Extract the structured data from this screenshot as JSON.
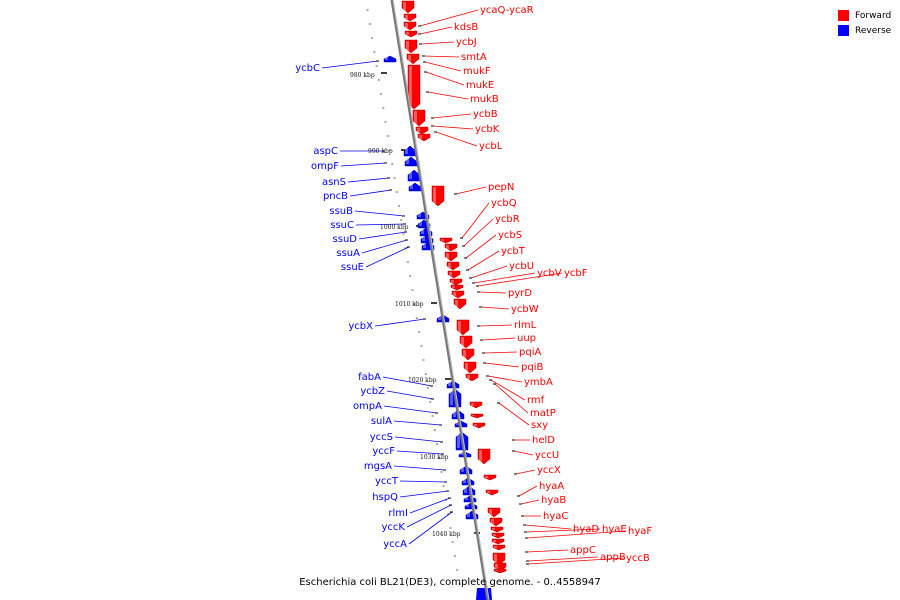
{
  "caption": "Escherichia coli BL21(DE3), complete genome. - 0..4558947",
  "legend": {
    "forward_label": "Forward",
    "forward_color": "#ff0000",
    "reverse_label": "Reverse",
    "reverse_color": "#0000ff"
  },
  "ticks": [
    "980 kbp",
    "990 kbp",
    "1000 kbp",
    "1010 kbp",
    "1020 kbp",
    "1030 kbp",
    "1040 kbp"
  ],
  "forward_genes": [
    "ycaQ-ycaR",
    "kdsB",
    "ycbJ",
    "smtA",
    "mukF",
    "mukE",
    "mukB",
    "ycbB",
    "ycbK",
    "ycbL",
    "pepN",
    "ycbQ",
    "ycbR",
    "ycbS",
    "ycbT",
    "ycbU",
    "ycbV",
    "ycbF",
    "pyrD",
    "ycbW",
    "rlmL",
    "uup",
    "pqiA",
    "pqiB",
    "ymbA",
    "rmf",
    "matP",
    "sxy",
    "helD",
    "yccU",
    "yccX",
    "hyaA",
    "hyaB",
    "hyaC",
    "hyaD",
    "hyaE",
    "hyaF",
    "appC",
    "appB",
    "yccB"
  ],
  "reverse_genes": [
    "ycbC",
    "aspC",
    "ompF",
    "asnS",
    "pncB",
    "ssuB",
    "ssuC",
    "ssuD",
    "ssuA",
    "ssuE",
    "ycbX",
    "fabA",
    "ycbZ",
    "ompA",
    "sulA",
    "yccS",
    "yccF",
    "mgsA",
    "yccT",
    "hspQ",
    "rlmI",
    "yccK",
    "yccA"
  ]
}
